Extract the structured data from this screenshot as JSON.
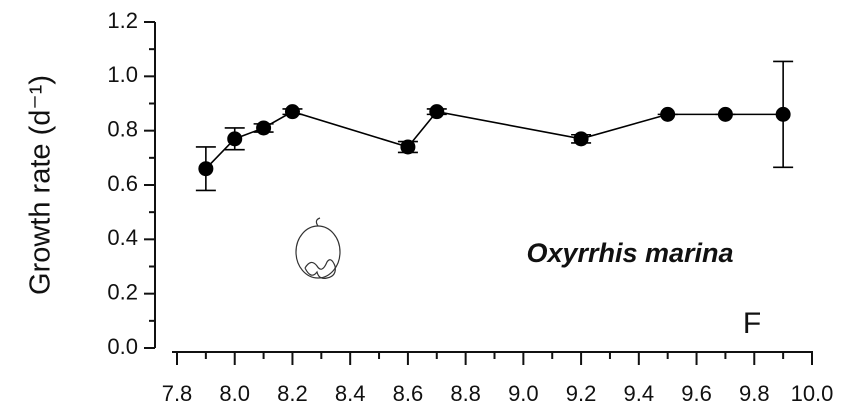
{
  "chart_data": {
    "type": "line",
    "ylabel": "Growth rate (d⁻¹)",
    "annotations": [
      "Oxyrrhis marina",
      "F"
    ],
    "x": [
      7.9,
      8.0,
      8.1,
      8.2,
      8.6,
      8.7,
      9.2,
      9.5,
      9.7,
      9.9
    ],
    "series": [
      {
        "color": "#000000",
        "values": [
          0.66,
          0.77,
          0.81,
          0.87,
          0.74,
          0.87,
          0.77,
          0.86,
          0.86,
          0.86
        ],
        "errors": [
          0.08,
          0.04,
          0.015,
          0.01,
          0.02,
          0.01,
          0.015,
          0,
          0,
          0.195
        ]
      }
    ],
    "xlim": [
      7.8,
      10.0
    ],
    "xticks": [
      7.8,
      {
        "value": 8.0,
        "label": "8.0"
      },
      8.2,
      8.4,
      8.6,
      8.8,
      {
        "value": 9.0,
        "label": "9.0"
      },
      9.2,
      9.4,
      9.6,
      9.8,
      {
        "value": 10.0,
        "label": "10.0"
      }
    ],
    "xminorticks": [
      7.9,
      8.1,
      8.3,
      8.5,
      8.7,
      8.9,
      9.1,
      9.3,
      9.5,
      9.7,
      9.9
    ],
    "ylim": [
      0,
      1.2
    ],
    "yticks": [
      {
        "value": 0,
        "label": "0.0"
      },
      0.2,
      0.4,
      0.6,
      0.8,
      {
        "value": 1.0,
        "label": "1.0"
      },
      1.2
    ],
    "yminorticks": [
      0.1,
      0.3,
      0.5,
      0.7,
      0.9,
      1.1
    ],
    "grid": false
  }
}
